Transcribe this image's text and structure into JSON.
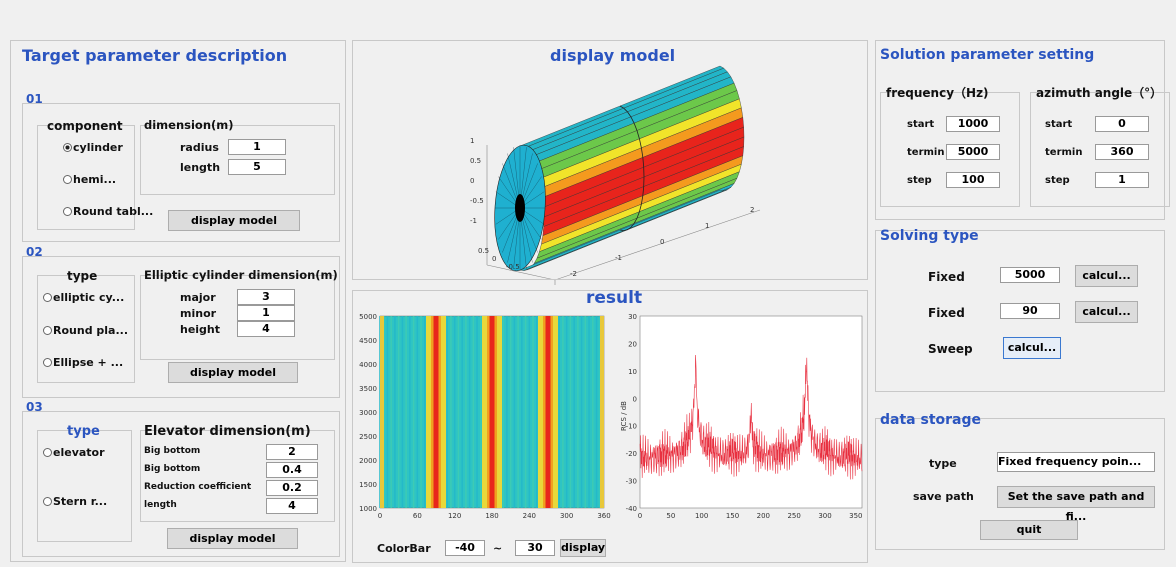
{
  "target": {
    "title": "Target parameter description",
    "section1": {
      "label": "01",
      "component_title": "component",
      "options": [
        "cylinder",
        "hemi...",
        "Round tabl..."
      ],
      "dimension_title": "dimension(m)",
      "fields": [
        {
          "label": "radius",
          "value": "1"
        },
        {
          "label": "length",
          "value": "5"
        }
      ],
      "button": "display model"
    },
    "section2": {
      "label": "02",
      "type_title": "type",
      "options": [
        "elliptic cy...",
        "Round pla...",
        "Ellipse + ..."
      ],
      "dimension_title": "Elliptic cylinder dimension(m)",
      "fields": [
        {
          "label": "major",
          "value": "3"
        },
        {
          "label": "minor",
          "value": "1"
        },
        {
          "label": "height",
          "value": "4"
        }
      ],
      "button": "display model"
    },
    "section3": {
      "label": "03",
      "type_title": "type",
      "options": [
        "elevator",
        "Stern r..."
      ],
      "dimension_title": "Elevator dimension(m)",
      "fields": [
        {
          "label": "Big bottom",
          "value": "2"
        },
        {
          "label": "Big bottom",
          "value": "0.4"
        },
        {
          "label": "Reduction coefficient",
          "value": "0.2"
        },
        {
          "label": "length",
          "value": "4"
        }
      ],
      "button": "display model"
    }
  },
  "display": {
    "title": "display model",
    "zticks": [
      "1",
      "0.5",
      "0",
      "-0.5",
      "-1"
    ],
    "yticks": [
      "0.5",
      "0",
      "-0.5"
    ],
    "xticks": [
      "-2",
      "-1",
      "0",
      "1",
      "2"
    ]
  },
  "result": {
    "title": "result",
    "heatmap": {
      "yticks": [
        "5000",
        "4500",
        "4000",
        "3500",
        "3000",
        "2500",
        "2000",
        "1500",
        "1000"
      ],
      "xticks": [
        "0",
        "60",
        "120",
        "180",
        "240",
        "300",
        "360"
      ]
    },
    "line": {
      "ylabel": "RCS / dB",
      "yticks": [
        "30",
        "20",
        "10",
        "0",
        "-10",
        "-20",
        "-30",
        "-40"
      ],
      "xticks": [
        "0",
        "50",
        "100",
        "150",
        "200",
        "250",
        "300",
        "350"
      ]
    },
    "colorbar": {
      "label": "ColorBar",
      "min": "-40",
      "separator": "~",
      "max": "30",
      "button": "display"
    }
  },
  "solution": {
    "title": "Solution parameter setting",
    "frequency": {
      "title": "frequency（Hz)",
      "rows": [
        {
          "label": "start",
          "value": "1000"
        },
        {
          "label": "termin",
          "value": "5000"
        },
        {
          "label": "step",
          "value": "100"
        }
      ]
    },
    "azimuth": {
      "title": "azimuth angle（°）",
      "rows": [
        {
          "label": "start",
          "value": "0"
        },
        {
          "label": "termin",
          "value": "360"
        },
        {
          "label": "step",
          "value": "1"
        }
      ]
    }
  },
  "solving": {
    "title": "Solving type",
    "rows": [
      {
        "label": "Fixed",
        "value": "5000",
        "button": "calcul..."
      },
      {
        "label": "Fixed",
        "value": "90",
        "button": "calcul..."
      },
      {
        "label": "Sweep",
        "button": "calcul..."
      }
    ]
  },
  "storage": {
    "title": "data storage",
    "type_label": "type",
    "type_value": "Fixed frequency poin...",
    "path_label": "save path",
    "path_button": "Set the save path and fi...",
    "quit": "quit"
  }
}
